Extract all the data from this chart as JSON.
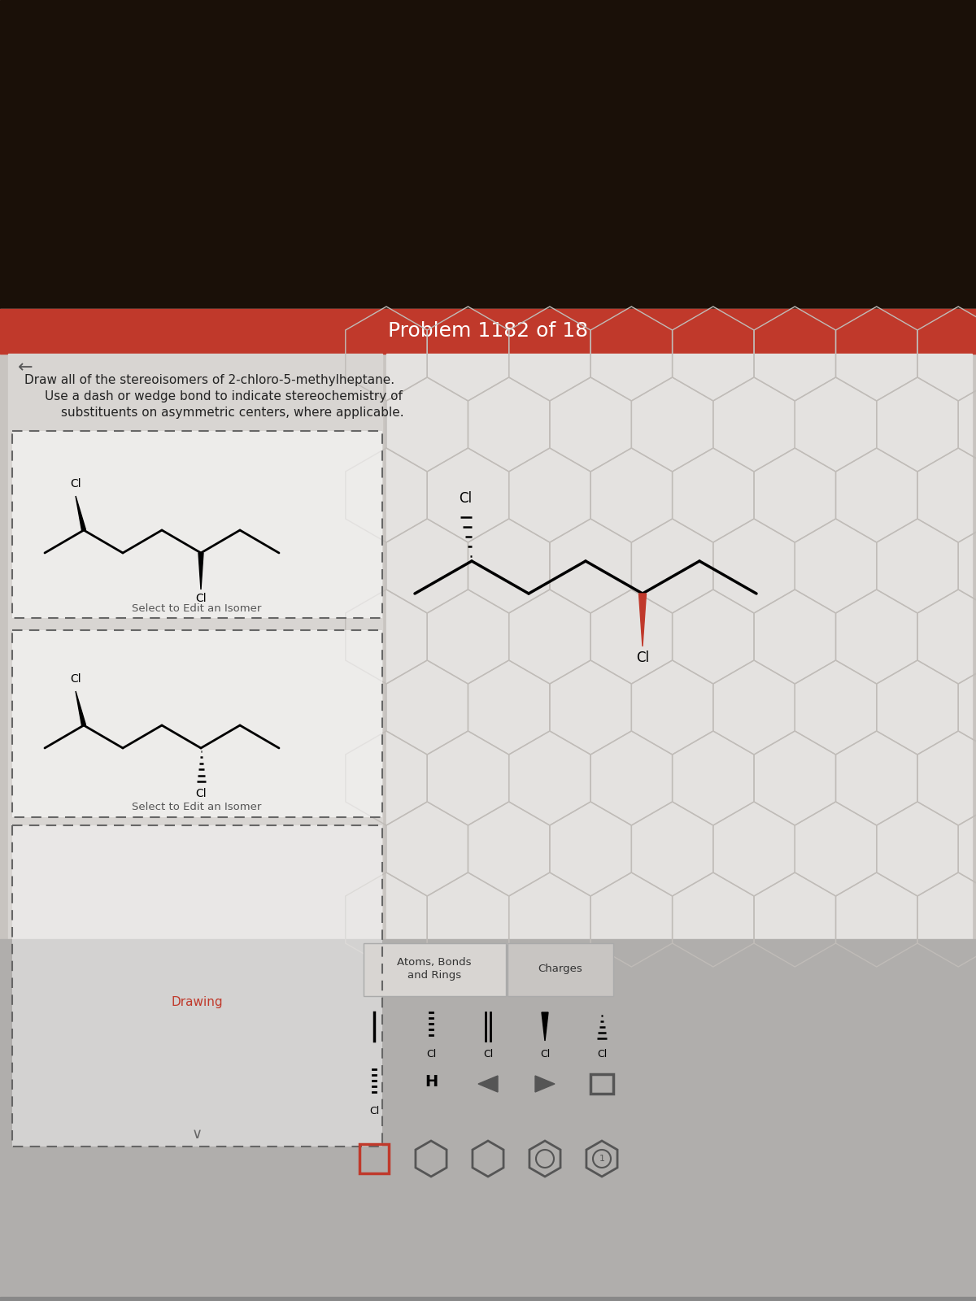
{
  "title": "Problem 1182 of 18",
  "title_bg": "#c0392b",
  "title_text_color": "#ffffff",
  "question_text_line1": "Draw all of the stereoisomers of 2-chloro-5-methylheptane.",
  "question_text_line2": "Use a dash or wedge bond to indicate stereochemistry of",
  "question_text_line3": "substituents on asymmetric centers, where applicable.",
  "bg_top_dark": "#1a1008",
  "bg_main": "#c8c4c0",
  "left_bg": "#d8d5d2",
  "right_bg": "#e4e2e0",
  "hex_color": "#c0bcb8",
  "select_text": "Select to Edit an Isomer",
  "drawing_text": "Drawing",
  "atoms_bonds_text": "Atoms, Bonds\nand Rings",
  "charges_text": "Charges",
  "toolbar_bg": "#b0aeac",
  "back_arrow": "←"
}
